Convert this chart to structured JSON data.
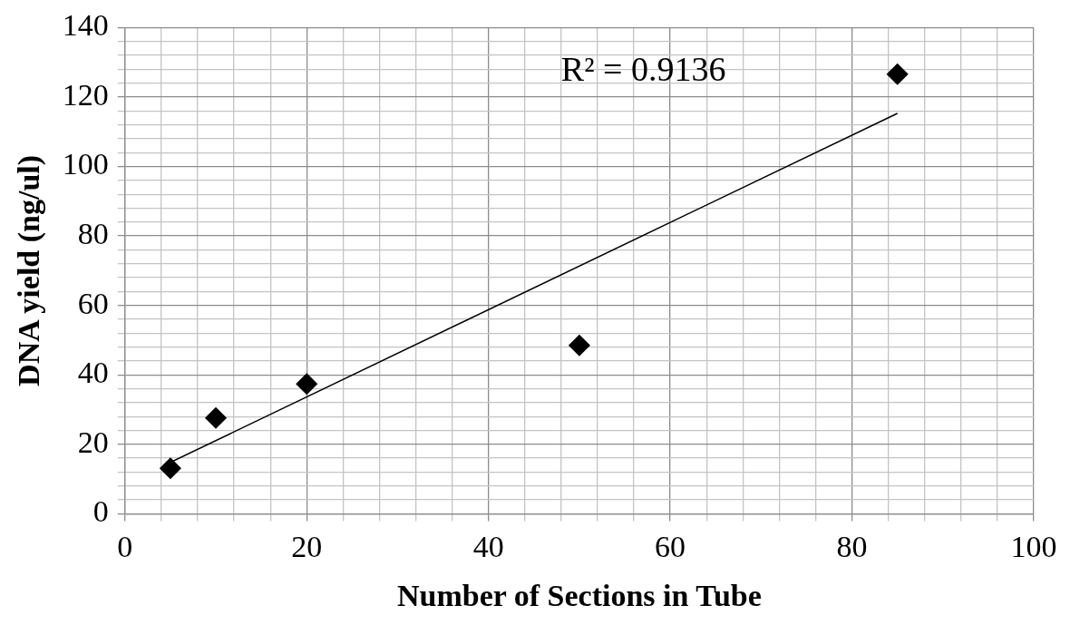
{
  "chart_data": {
    "type": "scatter",
    "xlabel": "Number of Sections in Tube",
    "ylabel": "DNA yield (ng/ul)",
    "annotations": [
      "R² = 0.9136"
    ],
    "x": [
      5,
      10,
      20,
      50,
      85
    ],
    "series": [
      {
        "color": "#000000",
        "marker": "diamond",
        "values": [
          13.1,
          27.6,
          37.4,
          48.5,
          126.6
        ]
      },
      {
        "type": "line",
        "color": "#000000",
        "marker": "none",
        "line_style": "solid",
        "x": [
          5,
          85
        ],
        "values": [
          14.8,
          115.3
        ]
      }
    ],
    "xlim": [
      0,
      100
    ],
    "xticks": [
      0,
      {
        "value": 4,
        "label": null
      },
      {
        "value": 8,
        "label": null
      },
      {
        "value": 12,
        "label": null
      },
      {
        "value": 16,
        "label": null
      },
      20,
      {
        "value": 24,
        "label": null
      },
      {
        "value": 28,
        "label": null
      },
      {
        "value": 32,
        "label": null
      },
      {
        "value": 36,
        "label": null
      },
      40,
      {
        "value": 44,
        "label": null
      },
      {
        "value": 48,
        "label": null
      },
      {
        "value": 52,
        "label": null
      },
      {
        "value": 56,
        "label": null
      },
      60,
      {
        "value": 64,
        "label": null
      },
      {
        "value": 68,
        "label": null
      },
      {
        "value": 72,
        "label": null
      },
      {
        "value": 76,
        "label": null
      },
      80,
      {
        "value": 84,
        "label": null
      },
      {
        "value": 88,
        "label": null
      },
      {
        "value": 92,
        "label": null
      },
      {
        "value": 96,
        "label": null
      },
      100
    ],
    "ylim": [
      0,
      140
    ],
    "yticks": [
      0,
      {
        "value": 4,
        "label": null
      },
      {
        "value": 8,
        "label": null
      },
      {
        "value": 12,
        "label": null
      },
      {
        "value": 16,
        "label": null
      },
      20,
      {
        "value": 24,
        "label": null
      },
      {
        "value": 28,
        "label": null
      },
      {
        "value": 32,
        "label": null
      },
      {
        "value": 36,
        "label": null
      },
      40,
      {
        "value": 44,
        "label": null
      },
      {
        "value": 48,
        "label": null
      },
      {
        "value": 52,
        "label": null
      },
      {
        "value": 56,
        "label": null
      },
      60,
      {
        "value": 64,
        "label": null
      },
      {
        "value": 68,
        "label": null
      },
      {
        "value": 72,
        "label": null
      },
      {
        "value": 76,
        "label": null
      },
      80,
      {
        "value": 84,
        "label": null
      },
      {
        "value": 88,
        "label": null
      },
      {
        "value": 92,
        "label": null
      },
      {
        "value": 96,
        "label": null
      },
      100,
      {
        "value": 104,
        "label": null
      },
      {
        "value": 108,
        "label": null
      },
      {
        "value": 112,
        "label": null
      },
      {
        "value": 116,
        "label": null
      },
      120,
      {
        "value": 124,
        "label": null
      },
      {
        "value": 128,
        "label": null
      },
      {
        "value": 132,
        "label": null
      },
      {
        "value": 136,
        "label": null
      },
      140
    ],
    "grid": true
  }
}
